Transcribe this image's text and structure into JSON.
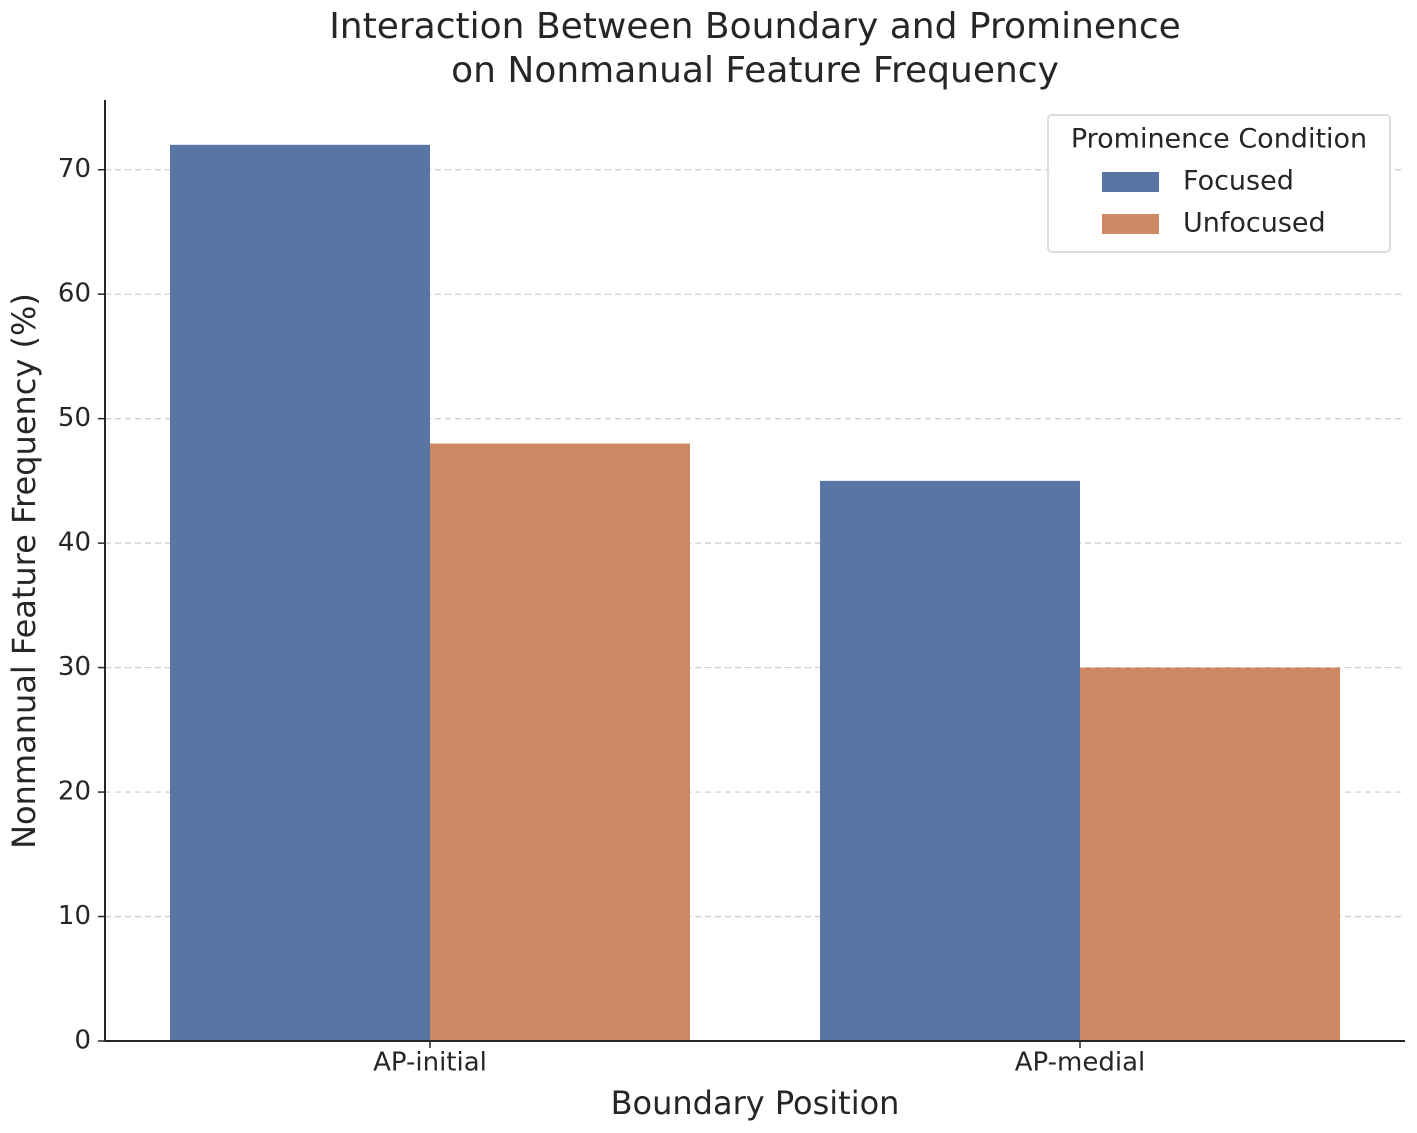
{
  "chart_data": {
    "type": "grouped-bar",
    "title": [
      "Interaction Between Boundary and Prominence",
      "on Nonmanual Feature Frequency"
    ],
    "x_label": "Boundary Position",
    "y_label": "Nonmanual Feature Frequency (%)",
    "categories": [
      "AP-initial",
      "AP-medial"
    ],
    "series": [
      {
        "name": "Focused",
        "color": "#5975a4",
        "values": [
          72,
          45
        ]
      },
      {
        "name": "Unfocused",
        "color": "#cc8963",
        "values": [
          48,
          30
        ]
      }
    ],
    "legend_title": "Prominence Condition",
    "legend": "upper right",
    "ylim": [
      0,
      75.6
    ],
    "yticks": [
      0,
      10,
      20,
      30,
      40,
      50,
      60,
      70
    ],
    "grid": true
  }
}
